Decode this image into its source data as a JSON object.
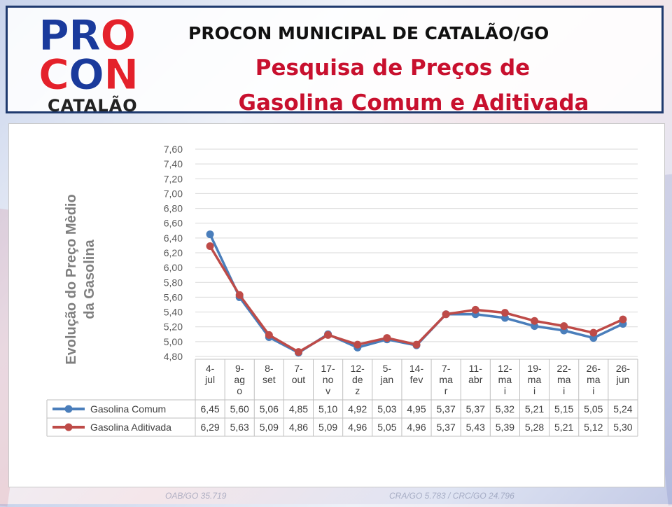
{
  "header": {
    "logo_pro": [
      "PRO"
    ],
    "logo_con": [
      "CON"
    ],
    "logo_sub": "CATALÃO",
    "title": "PROCON MUNICIPAL DE CATALÃO/GO",
    "subtitle_line1": "Pesquisa de Preços de",
    "subtitle_line2": "Gasolina Comum e Aditivada"
  },
  "footer": {
    "left": "OAB/GO 35.719",
    "right": "CRA/GO 5.783 / CRC/GO 24.796"
  },
  "colors": {
    "brand_blue": "#1a3a9c",
    "brand_red": "#e4212b",
    "subtitle_red": "#c8102e",
    "series_comum": "#4a7ebb",
    "series_aditivada": "#be4b48"
  },
  "chart_data": {
    "type": "line",
    "ylabel": "Evolução do Preço Mèdio da Gasolina",
    "ylabel_lines": [
      "Evolução do Preço Mèdio",
      "da Gasolina"
    ],
    "ylim": [
      4.8,
      7.6
    ],
    "yticks": [
      "7,60",
      "7,40",
      "7,20",
      "7,00",
      "6,80",
      "6,60",
      "6,40",
      "6,20",
      "6,00",
      "5,80",
      "5,60",
      "5,40",
      "5,20",
      "5,00",
      "4,80"
    ],
    "ytick_values": [
      7.6,
      7.4,
      7.2,
      7.0,
      6.8,
      6.6,
      6.4,
      6.2,
      6.0,
      5.8,
      5.6,
      5.4,
      5.2,
      5.0,
      4.8
    ],
    "grid": true,
    "categories": [
      "4-jul",
      "9-ago",
      "8-set",
      "7-out",
      "17-nov",
      "12-dez",
      "5-jan",
      "14-fev",
      "7-mar",
      "11-abr",
      "12-mai",
      "19-mai",
      "22-mai",
      "26-mai",
      "26-jun"
    ],
    "category_label_lines": [
      [
        "4-",
        "jul"
      ],
      [
        "9-",
        "ag",
        "o"
      ],
      [
        "8-",
        "set"
      ],
      [
        "7-",
        "out"
      ],
      [
        "17-",
        "no",
        "v"
      ],
      [
        "12-",
        "de",
        "z"
      ],
      [
        "5-",
        "jan"
      ],
      [
        "14-",
        "fev"
      ],
      [
        "7-",
        "ma",
        "r"
      ],
      [
        "11-",
        "abr"
      ],
      [
        "12-",
        "ma",
        "i"
      ],
      [
        "19-",
        "ma",
        "i"
      ],
      [
        "22-",
        "ma",
        "i"
      ],
      [
        "26-",
        "ma",
        "i"
      ],
      [
        "26-",
        "jun"
      ]
    ],
    "series": [
      {
        "name": "Gasolina Comum",
        "color": "#4a7ebb",
        "values": [
          6.45,
          5.6,
          5.06,
          4.85,
          5.1,
          4.92,
          5.03,
          4.95,
          5.37,
          5.37,
          5.32,
          5.21,
          5.15,
          5.05,
          5.24
        ],
        "labels": [
          "6,45",
          "5,60",
          "5,06",
          "4,85",
          "5,10",
          "4,92",
          "5,03",
          "4,95",
          "5,37",
          "5,37",
          "5,32",
          "5,21",
          "5,15",
          "5,05",
          "5,24"
        ]
      },
      {
        "name": "Gasolina Aditivada",
        "color": "#be4b48",
        "values": [
          6.29,
          5.63,
          5.09,
          4.86,
          5.09,
          4.96,
          5.05,
          4.96,
          5.37,
          5.43,
          5.39,
          5.28,
          5.21,
          5.12,
          5.3
        ],
        "labels": [
          "6,29",
          "5,63",
          "5,09",
          "4,86",
          "5,09",
          "4,96",
          "5,05",
          "4,96",
          "5,37",
          "5,43",
          "5,39",
          "5,28",
          "5,21",
          "5,12",
          "5,30"
        ]
      }
    ]
  }
}
